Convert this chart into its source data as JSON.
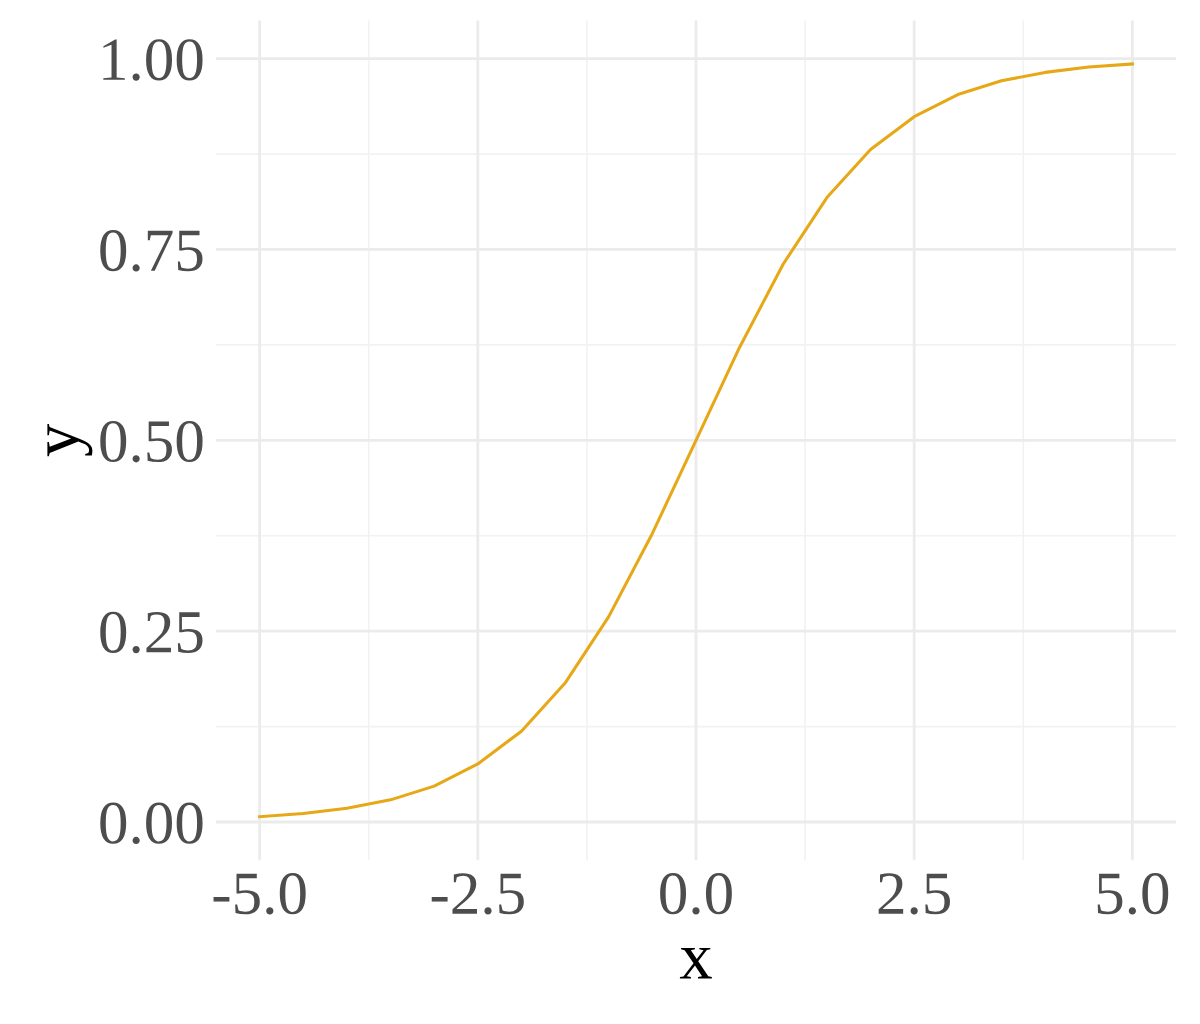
{
  "chart_data": {
    "type": "line",
    "xlabel": "x",
    "ylabel": "y",
    "x": [
      -5,
      -4.5,
      -4,
      -3.5,
      -3,
      -2.5,
      -2,
      -1.5,
      -1,
      -0.5,
      0,
      0.5,
      1,
      1.5,
      2,
      2.5,
      3,
      3.5,
      4,
      4.5,
      5
    ],
    "series": [
      {
        "color": "#e6a817",
        "values": [
          0.007,
          0.011,
          0.018,
          0.029,
          0.047,
          0.076,
          0.119,
          0.182,
          0.269,
          0.378,
          0.5,
          0.622,
          0.731,
          0.818,
          0.881,
          0.924,
          0.953,
          0.971,
          0.982,
          0.989,
          0.993
        ]
      }
    ],
    "xlim": [
      -5.5,
      5.5
    ],
    "ylim": [
      -0.05,
      1.05
    ],
    "xticks": [
      {
        "value": -5,
        "label": "-5.0"
      },
      {
        "value": -2.5,
        "label": "-2.5"
      },
      {
        "value": 0,
        "label": "0.0"
      },
      {
        "value": 2.5,
        "label": "2.5"
      },
      {
        "value": 5,
        "label": "5.0"
      }
    ],
    "yticks": [
      {
        "value": 0,
        "label": "0.00"
      },
      {
        "value": 0.25,
        "label": "0.25"
      },
      {
        "value": 0.5,
        "label": "0.50"
      },
      {
        "value": 0.75,
        "label": "0.75"
      },
      {
        "value": 1,
        "label": "1.00"
      }
    ],
    "grid": true,
    "line_style": "solid"
  }
}
